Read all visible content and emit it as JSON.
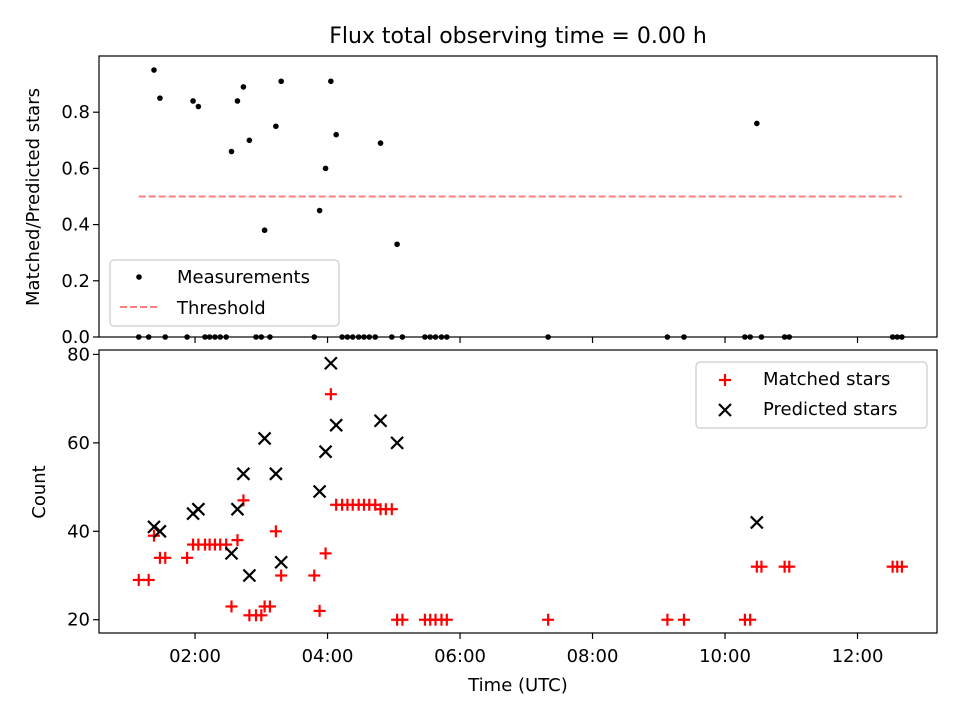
{
  "chart_data": [
    {
      "type": "scatter",
      "title": "Flux total observing time = 0.00 h",
      "xlabel": "",
      "ylabel": "Matched/Predicted stars",
      "xlim_hours": [
        0.55,
        13.2
      ],
      "ylim": [
        0,
        1.0
      ],
      "yticks": [
        0.0,
        0.2,
        0.4,
        0.6,
        0.8
      ],
      "ytick_labels": [
        "0.0",
        "0.2",
        "0.4",
        "0.6",
        "0.8"
      ],
      "xticks_hours": [
        2,
        4,
        6,
        8,
        10,
        12
      ],
      "legend_position": "bottom-left",
      "series": [
        {
          "name": "Measurements",
          "marker": "dot",
          "color": "#000000",
          "x": [
            1.38,
            1.47,
            1.97,
            2.05,
            2.55,
            2.64,
            2.73,
            2.82,
            3.05,
            3.22,
            3.3,
            3.88,
            3.97,
            4.05,
            4.13,
            4.8,
            5.05,
            10.48,
            1.15,
            1.3,
            1.55,
            1.88,
            2.15,
            2.22,
            2.3,
            2.38,
            2.47,
            2.92,
            3.0,
            3.13,
            3.8,
            4.22,
            4.3,
            4.38,
            4.47,
            4.55,
            4.63,
            4.72,
            4.97,
            5.13,
            5.47,
            5.55,
            5.63,
            5.72,
            5.8,
            7.33,
            9.13,
            9.38,
            10.3,
            10.38,
            10.55,
            10.9,
            10.97,
            12.53,
            12.6,
            12.67
          ],
          "y": [
            0.95,
            0.85,
            0.84,
            0.82,
            0.66,
            0.84,
            0.89,
            0.7,
            0.38,
            0.75,
            0.91,
            0.45,
            0.6,
            0.91,
            0.72,
            0.69,
            0.33,
            0.76,
            0,
            0,
            0,
            0,
            0,
            0,
            0,
            0,
            0,
            0,
            0,
            0,
            0,
            0,
            0,
            0,
            0,
            0,
            0,
            0,
            0,
            0,
            0,
            0,
            0,
            0,
            0,
            0,
            0,
            0,
            0,
            0,
            0,
            0,
            0,
            0,
            0,
            0
          ]
        },
        {
          "name": "Threshold",
          "style": "dashed",
          "color": "#ff7f7f",
          "x": [
            1.15,
            12.67
          ],
          "y": [
            0.5,
            0.5
          ]
        }
      ]
    },
    {
      "type": "scatter",
      "title": "",
      "xlabel": "Time (UTC)",
      "ylabel": "Count",
      "xlim_hours": [
        0.55,
        13.2
      ],
      "ylim": [
        17,
        81
      ],
      "yticks": [
        20,
        40,
        60,
        80
      ],
      "ytick_labels": [
        "20",
        "40",
        "60",
        "80"
      ],
      "xticks_hours": [
        2,
        4,
        6,
        8,
        10,
        12
      ],
      "xtick_labels": [
        "02:00",
        "04:00",
        "06:00",
        "08:00",
        "10:00",
        "12:00"
      ],
      "legend_position": "top-right",
      "series": [
        {
          "name": "Matched stars",
          "marker": "plus",
          "color": "#ff0000",
          "x": [
            1.15,
            1.3,
            1.38,
            1.47,
            1.55,
            1.88,
            1.97,
            2.05,
            2.15,
            2.22,
            2.3,
            2.38,
            2.47,
            2.55,
            2.64,
            2.73,
            2.82,
            2.92,
            3.0,
            3.05,
            3.13,
            3.22,
            3.3,
            3.8,
            3.88,
            3.97,
            4.05,
            4.13,
            4.22,
            4.3,
            4.38,
            4.47,
            4.55,
            4.63,
            4.72,
            4.8,
            4.88,
            4.97,
            5.05,
            5.13,
            5.47,
            5.55,
            5.63,
            5.72,
            5.8,
            7.33,
            9.13,
            9.38,
            10.3,
            10.38,
            10.48,
            10.55,
            10.9,
            10.97,
            12.53,
            12.6,
            12.67
          ],
          "y": [
            29,
            29,
            39,
            34,
            34,
            34,
            37,
            37,
            37,
            37,
            37,
            37,
            37,
            23,
            38,
            47,
            21,
            21,
            21,
            23,
            23,
            40,
            30,
            30,
            22,
            35,
            71,
            46,
            46,
            46,
            46,
            46,
            46,
            46,
            46,
            45,
            45,
            45,
            20,
            20,
            20,
            20,
            20,
            20,
            20,
            20,
            20,
            20,
            20,
            20,
            32,
            32,
            32,
            32,
            32,
            32,
            32
          ]
        },
        {
          "name": "Predicted stars",
          "marker": "x",
          "color": "#000000",
          "x": [
            1.38,
            1.47,
            1.97,
            2.05,
            2.55,
            2.64,
            2.73,
            2.82,
            3.05,
            3.22,
            3.3,
            3.88,
            3.97,
            4.05,
            4.13,
            4.8,
            5.05,
            10.48
          ],
          "y": [
            41,
            40,
            44,
            45,
            35,
            45,
            53,
            30,
            61,
            53,
            33,
            49,
            58,
            78,
            64,
            65,
            60,
            42
          ]
        }
      ]
    }
  ]
}
